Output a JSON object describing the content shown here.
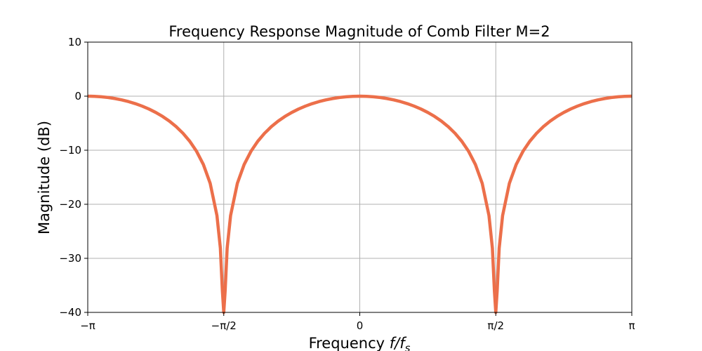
{
  "chart_data": {
    "type": "line",
    "title": "Frequency Response Magnitude of Comb Filter M=2",
    "xlabel_prefix": "Frequency ",
    "xlabel_math": "f/f",
    "xlabel_sub": "s",
    "ylabel": "Magnitude (dB)",
    "x_unit": "radians/π",
    "xlim": [
      -1,
      1
    ],
    "ylim": [
      -40,
      10
    ],
    "grid": true,
    "line_color": "#ec6f4a",
    "x_ticks": [
      -1,
      -0.5,
      0,
      0.5,
      1
    ],
    "x_tick_labels": [
      "−π",
      "−π/2",
      "0",
      "π/2",
      "π"
    ],
    "y_ticks": [
      10,
      0,
      -10,
      -20,
      -30,
      -40
    ],
    "y_tick_labels": [
      "10",
      "0",
      "−10",
      "−20",
      "−30",
      "−40"
    ],
    "series": [
      {
        "points": [
          [
            -1,
            0
          ],
          [
            -0.975,
            -0.027
          ],
          [
            -0.95,
            -0.108
          ],
          [
            -0.925,
            -0.244
          ],
          [
            -0.9,
            -0.436
          ],
          [
            -0.875,
            -0.688
          ],
          [
            -0.85,
            -1.002
          ],
          [
            -0.825,
            -1.385
          ],
          [
            -0.8,
            -1.841
          ],
          [
            -0.775,
            -2.379
          ],
          [
            -0.75,
            -3.01
          ],
          [
            -0.725,
            -3.749
          ],
          [
            -0.7,
            -4.616
          ],
          [
            -0.675,
            -5.639
          ],
          [
            -0.65,
            -6.859
          ],
          [
            -0.625,
            -8.344
          ],
          [
            -0.6,
            -10.2
          ],
          [
            -0.575,
            -12.636
          ],
          [
            -0.55,
            -16.114
          ],
          [
            -0.525,
            -22.107
          ],
          [
            -0.5125,
            -28.12
          ],
          [
            -0.505,
            -36.08
          ],
          [
            -0.5,
            -40
          ],
          [
            -0.495,
            -36.08
          ],
          [
            -0.4875,
            -28.12
          ],
          [
            -0.475,
            -22.107
          ],
          [
            -0.45,
            -16.114
          ],
          [
            -0.425,
            -12.636
          ],
          [
            -0.4,
            -10.2
          ],
          [
            -0.375,
            -8.344
          ],
          [
            -0.35,
            -6.859
          ],
          [
            -0.325,
            -5.639
          ],
          [
            -0.3,
            -4.616
          ],
          [
            -0.275,
            -3.749
          ],
          [
            -0.25,
            -3.01
          ],
          [
            -0.225,
            -2.379
          ],
          [
            -0.2,
            -1.841
          ],
          [
            -0.175,
            -1.385
          ],
          [
            -0.15,
            -1.002
          ],
          [
            -0.125,
            -0.688
          ],
          [
            -0.1,
            -0.436
          ],
          [
            -0.075,
            -0.244
          ],
          [
            -0.05,
            -0.108
          ],
          [
            -0.025,
            -0.027
          ],
          [
            0,
            0
          ],
          [
            0.025,
            -0.027
          ],
          [
            0.05,
            -0.108
          ],
          [
            0.075,
            -0.244
          ],
          [
            0.1,
            -0.436
          ],
          [
            0.125,
            -0.688
          ],
          [
            0.15,
            -1.002
          ],
          [
            0.175,
            -1.385
          ],
          [
            0.2,
            -1.841
          ],
          [
            0.225,
            -2.379
          ],
          [
            0.25,
            -3.01
          ],
          [
            0.275,
            -3.749
          ],
          [
            0.3,
            -4.616
          ],
          [
            0.325,
            -5.639
          ],
          [
            0.35,
            -6.859
          ],
          [
            0.375,
            -8.344
          ],
          [
            0.4,
            -10.2
          ],
          [
            0.425,
            -12.636
          ],
          [
            0.45,
            -16.114
          ],
          [
            0.475,
            -22.107
          ],
          [
            0.4875,
            -28.12
          ],
          [
            0.495,
            -36.08
          ],
          [
            0.5,
            -40
          ],
          [
            0.505,
            -36.08
          ],
          [
            0.5125,
            -28.12
          ],
          [
            0.525,
            -22.107
          ],
          [
            0.55,
            -16.114
          ],
          [
            0.575,
            -12.636
          ],
          [
            0.6,
            -10.2
          ],
          [
            0.625,
            -8.344
          ],
          [
            0.65,
            -6.859
          ],
          [
            0.675,
            -5.639
          ],
          [
            0.7,
            -4.616
          ],
          [
            0.725,
            -3.749
          ],
          [
            0.75,
            -3.01
          ],
          [
            0.775,
            -2.379
          ],
          [
            0.8,
            -1.841
          ],
          [
            0.825,
            -1.385
          ],
          [
            0.85,
            -1.002
          ],
          [
            0.875,
            -0.688
          ],
          [
            0.9,
            -0.436
          ],
          [
            0.925,
            -0.244
          ],
          [
            0.95,
            -0.108
          ],
          [
            0.975,
            -0.027
          ],
          [
            1,
            0
          ]
        ]
      }
    ]
  }
}
